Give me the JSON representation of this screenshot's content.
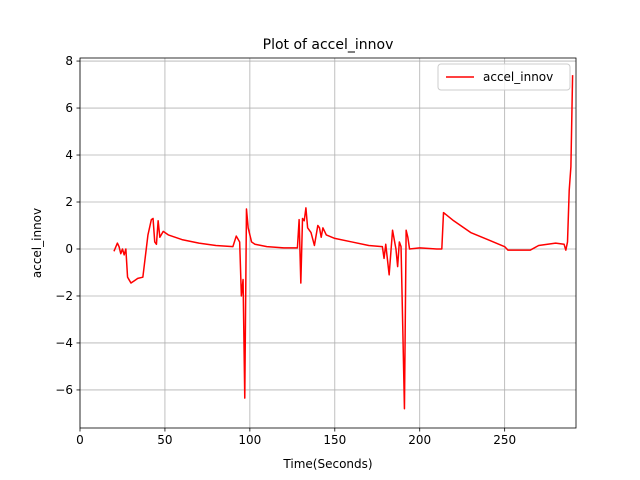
{
  "chart_data": {
    "type": "line",
    "title": "Plot of accel_innov",
    "x_label": "Time(Seconds)",
    "y_label": "accel_innov",
    "x": [
      20,
      22,
      23,
      24,
      25,
      26,
      27,
      28,
      30,
      32,
      34,
      37,
      38,
      40,
      42,
      43,
      44,
      45,
      46,
      47,
      49,
      52,
      60,
      70,
      80,
      90,
      92,
      94,
      95,
      96,
      97,
      98,
      99,
      101,
      103,
      110,
      120,
      128,
      129,
      130,
      131,
      132,
      133,
      134,
      136,
      138,
      140,
      141,
      142,
      143,
      145,
      150,
      160,
      170,
      178,
      179,
      180,
      182,
      184,
      186,
      187,
      188,
      189,
      190,
      191,
      192,
      193,
      194,
      200,
      210,
      213,
      214,
      220,
      230,
      240,
      250,
      252,
      260,
      265,
      270,
      280,
      285,
      286,
      287,
      288,
      289,
      290
    ],
    "series": [
      {
        "name": "accel_innov",
        "color": "#ff0000",
        "values": [
          -0.1,
          0.25,
          0.1,
          -0.2,
          0.0,
          -0.25,
          0.0,
          -1.2,
          -1.45,
          -1.35,
          -1.25,
          -1.2,
          -0.6,
          0.6,
          1.25,
          1.3,
          0.3,
          0.2,
          1.2,
          0.5,
          0.75,
          0.6,
          0.4,
          0.25,
          0.15,
          0.1,
          0.55,
          0.3,
          -2.0,
          -1.3,
          -6.35,
          1.7,
          0.9,
          0.3,
          0.2,
          0.1,
          0.05,
          0.05,
          1.25,
          -1.45,
          1.3,
          1.2,
          1.75,
          0.9,
          0.7,
          0.15,
          1.0,
          0.9,
          0.5,
          0.9,
          0.6,
          0.45,
          0.3,
          0.15,
          0.1,
          -0.4,
          0.2,
          -1.1,
          0.8,
          0.0,
          -0.75,
          0.3,
          0.1,
          -3.3,
          -6.8,
          0.8,
          0.5,
          0.0,
          0.05,
          0.0,
          0.0,
          1.55,
          1.2,
          0.7,
          0.4,
          0.1,
          -0.05,
          -0.05,
          -0.05,
          0.15,
          0.25,
          0.2,
          -0.05,
          0.3,
          2.5,
          3.5,
          7.4
        ]
      }
    ],
    "xlim": [
      0,
      292
    ],
    "xticks": [
      0,
      50,
      100,
      150,
      200,
      250
    ],
    "ylim": [
      -7.62,
      8.13
    ],
    "yticks": [
      {
        "value": -6,
        "label": "−6"
      },
      {
        "value": -4,
        "label": "−4"
      },
      {
        "value": -2,
        "label": "−2"
      },
      0,
      2,
      4,
      6,
      8
    ],
    "grid": true,
    "legend": "upper right"
  }
}
